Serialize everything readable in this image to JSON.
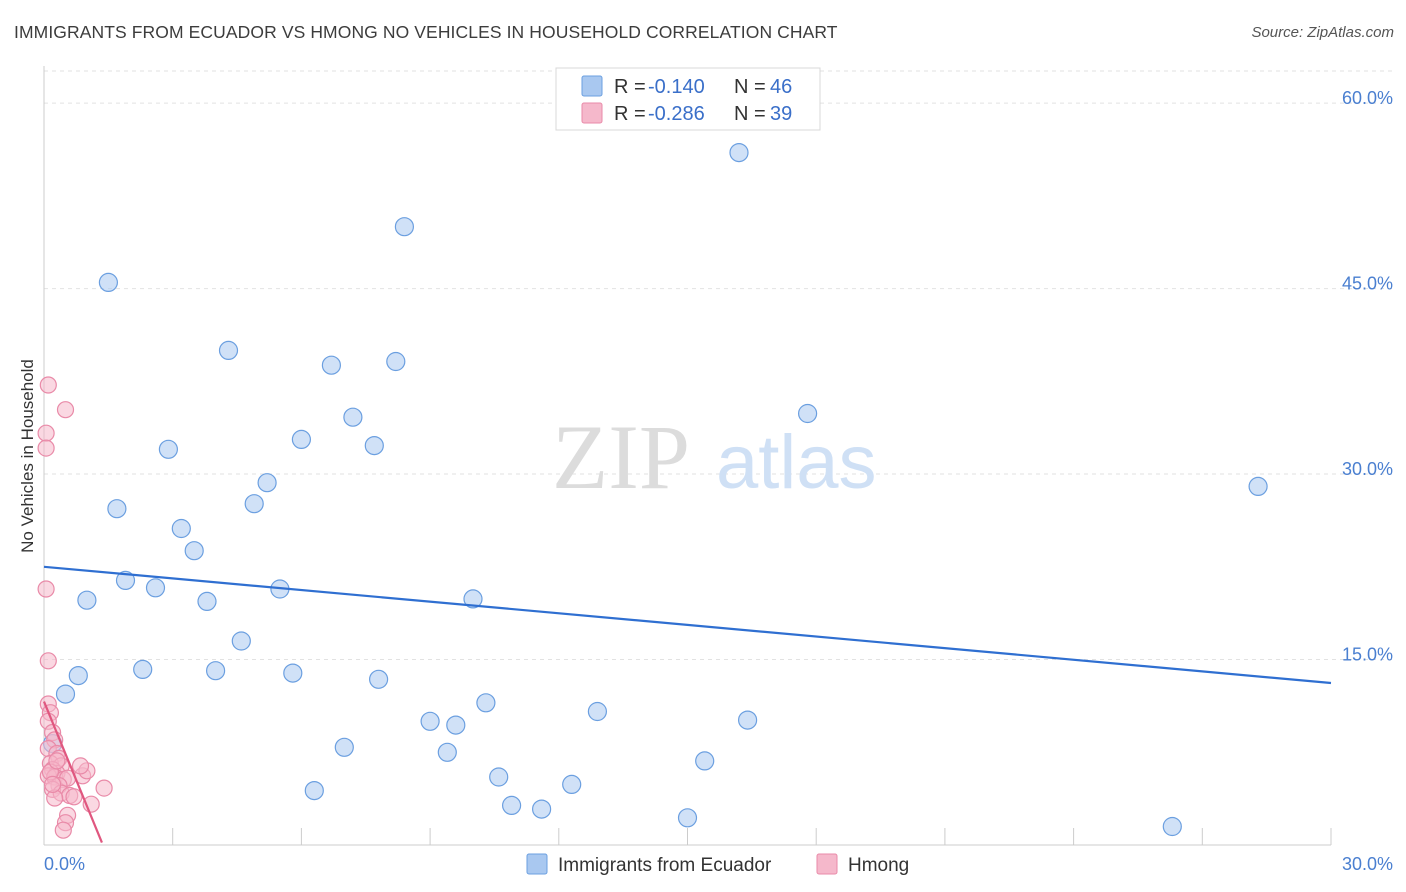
{
  "title": "IMMIGRANTS FROM ECUADOR VS HMONG NO VEHICLES IN HOUSEHOLD CORRELATION CHART",
  "source": "Source: ZipAtlas.com",
  "watermark": {
    "zip": "ZIP",
    "atlas": "atlas"
  },
  "legend_top": {
    "rows": [
      {
        "r_label": "R =",
        "r_value": "-0.140",
        "n_label": "N =",
        "n_value": "46",
        "color": "#a9c8f0"
      },
      {
        "r_label": "R =",
        "r_value": "-0.286",
        "n_label": "N =",
        "n_value": "39",
        "color": "#f5b8cb"
      }
    ]
  },
  "chart_data": {
    "type": "scatter",
    "title": "IMMIGRANTS FROM ECUADOR VS HMONG NO VEHICLES IN HOUSEHOLD CORRELATION CHART",
    "xlabel": "",
    "ylabel": "No Vehicles in Household",
    "xlim": [
      0,
      30
    ],
    "ylim": [
      0,
      63
    ],
    "x_tick_labels": {
      "left": "0.0%",
      "right": "30.0%"
    },
    "y_ticks": [
      {
        "value": 15,
        "label": "15.0%"
      },
      {
        "value": 30,
        "label": "30.0%"
      },
      {
        "value": 45,
        "label": "45.0%"
      },
      {
        "value": 60,
        "label": "60.0%"
      }
    ],
    "grid": true,
    "legend_position": "bottom",
    "series": [
      {
        "name": "Immigrants from Ecuador",
        "color": "#a9c8f0",
        "stroke": "#6b9fe0",
        "trend": {
          "x": [
            0,
            30
          ],
          "y": [
            22.5,
            13.1
          ],
          "color": "#2f6fd1"
        },
        "points": [
          [
            0.2,
            8.2
          ],
          [
            0.5,
            12.2
          ],
          [
            0.8,
            13.7
          ],
          [
            1.0,
            19.8
          ],
          [
            1.5,
            45.5
          ],
          [
            1.7,
            27.2
          ],
          [
            1.9,
            21.4
          ],
          [
            2.3,
            14.2
          ],
          [
            2.6,
            20.8
          ],
          [
            2.9,
            32.0
          ],
          [
            3.2,
            25.6
          ],
          [
            3.5,
            23.8
          ],
          [
            3.8,
            19.7
          ],
          [
            4.0,
            14.1
          ],
          [
            4.3,
            40.0
          ],
          [
            4.6,
            16.5
          ],
          [
            4.9,
            27.6
          ],
          [
            5.2,
            29.3
          ],
          [
            5.5,
            20.7
          ],
          [
            5.8,
            13.9
          ],
          [
            6.0,
            32.8
          ],
          [
            6.3,
            4.4
          ],
          [
            6.7,
            38.8
          ],
          [
            7.0,
            7.9
          ],
          [
            7.2,
            34.6
          ],
          [
            7.7,
            32.3
          ],
          [
            7.8,
            13.4
          ],
          [
            8.2,
            39.1
          ],
          [
            8.4,
            50.0
          ],
          [
            9.0,
            10.0
          ],
          [
            9.4,
            7.5
          ],
          [
            9.6,
            9.7
          ],
          [
            10.0,
            19.9
          ],
          [
            10.3,
            11.5
          ],
          [
            10.6,
            5.5
          ],
          [
            10.9,
            3.2
          ],
          [
            11.6,
            2.9
          ],
          [
            12.3,
            4.9
          ],
          [
            12.9,
            10.8
          ],
          [
            15.0,
            2.2
          ],
          [
            15.4,
            6.8
          ],
          [
            16.2,
            56.0
          ],
          [
            16.4,
            10.1
          ],
          [
            17.8,
            34.9
          ],
          [
            26.3,
            1.5
          ],
          [
            28.3,
            29.0
          ]
        ]
      },
      {
        "name": "Hmong",
        "color": "#f5b8cb",
        "stroke": "#e98aa8",
        "trend": {
          "x": [
            0,
            1.35
          ],
          "y": [
            11.6,
            0.2
          ],
          "color": "#e0577f"
        },
        "points": [
          [
            0.1,
            37.2
          ],
          [
            0.05,
            33.3
          ],
          [
            0.05,
            32.1
          ],
          [
            0.5,
            35.2
          ],
          [
            0.05,
            20.7
          ],
          [
            0.1,
            14.9
          ],
          [
            0.1,
            11.4
          ],
          [
            0.15,
            10.7
          ],
          [
            0.1,
            10.0
          ],
          [
            0.2,
            9.1
          ],
          [
            0.25,
            8.5
          ],
          [
            0.1,
            7.8
          ],
          [
            0.3,
            7.4
          ],
          [
            0.35,
            7.0
          ],
          [
            0.15,
            6.6
          ],
          [
            0.4,
            6.4
          ],
          [
            0.2,
            6.1
          ],
          [
            0.3,
            5.8
          ],
          [
            0.1,
            5.6
          ],
          [
            0.25,
            5.5
          ],
          [
            0.45,
            5.3
          ],
          [
            0.55,
            5.4
          ],
          [
            0.35,
            4.8
          ],
          [
            0.2,
            4.5
          ],
          [
            0.4,
            4.2
          ],
          [
            0.6,
            4.0
          ],
          [
            0.25,
            3.8
          ],
          [
            0.7,
            3.9
          ],
          [
            0.55,
            2.4
          ],
          [
            0.5,
            1.8
          ],
          [
            0.45,
            1.2
          ],
          [
            0.9,
            5.6
          ],
          [
            1.0,
            6.0
          ],
          [
            1.1,
            3.3
          ],
          [
            1.4,
            4.6
          ],
          [
            0.15,
            5.9
          ],
          [
            0.2,
            4.9
          ],
          [
            0.3,
            6.8
          ],
          [
            0.85,
            6.4
          ]
        ]
      }
    ]
  }
}
